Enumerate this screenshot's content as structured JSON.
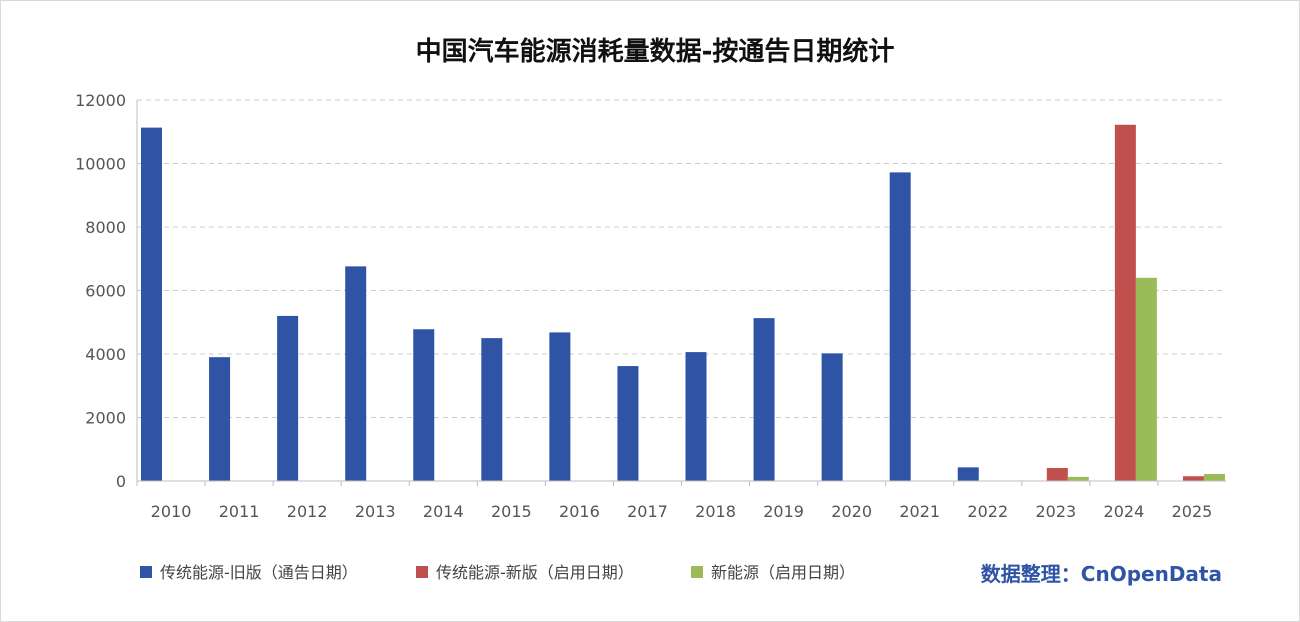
{
  "chart_data": {
    "type": "bar",
    "title": "中国汽车能源消耗量数据-按通告日期统计",
    "xlabel": "",
    "ylabel": "",
    "ylim": [
      0,
      12000
    ],
    "yticks": [
      0,
      2000,
      4000,
      6000,
      8000,
      10000,
      12000
    ],
    "grid": true,
    "categories": [
      "2010",
      "2011",
      "2012",
      "2013",
      "2014",
      "2015",
      "2016",
      "2017",
      "2018",
      "2019",
      "2020",
      "2021",
      "2022",
      "2023",
      "2024",
      "2025"
    ],
    "series": [
      {
        "name": "传统能源-旧版（通告日期）",
        "color": "#2f54a6",
        "values": [
          11130,
          3900,
          5200,
          6760,
          4780,
          4500,
          4680,
          3620,
          4060,
          5130,
          4020,
          9720,
          430,
          null,
          null,
          null
        ]
      },
      {
        "name": "传统能源-新版（启用日期）",
        "color": "#c0504d",
        "values": [
          null,
          null,
          null,
          null,
          null,
          null,
          null,
          null,
          null,
          null,
          null,
          null,
          null,
          410,
          11220,
          150
        ]
      },
      {
        "name": "新能源（启用日期）",
        "color": "#9bbb59",
        "values": [
          null,
          null,
          null,
          null,
          null,
          null,
          null,
          null,
          null,
          null,
          null,
          null,
          null,
          130,
          6400,
          220
        ]
      }
    ],
    "legend_position": "bottom-left"
  },
  "credit": {
    "text": "数据整理：CnOpenData",
    "color": "#2f54a6"
  }
}
